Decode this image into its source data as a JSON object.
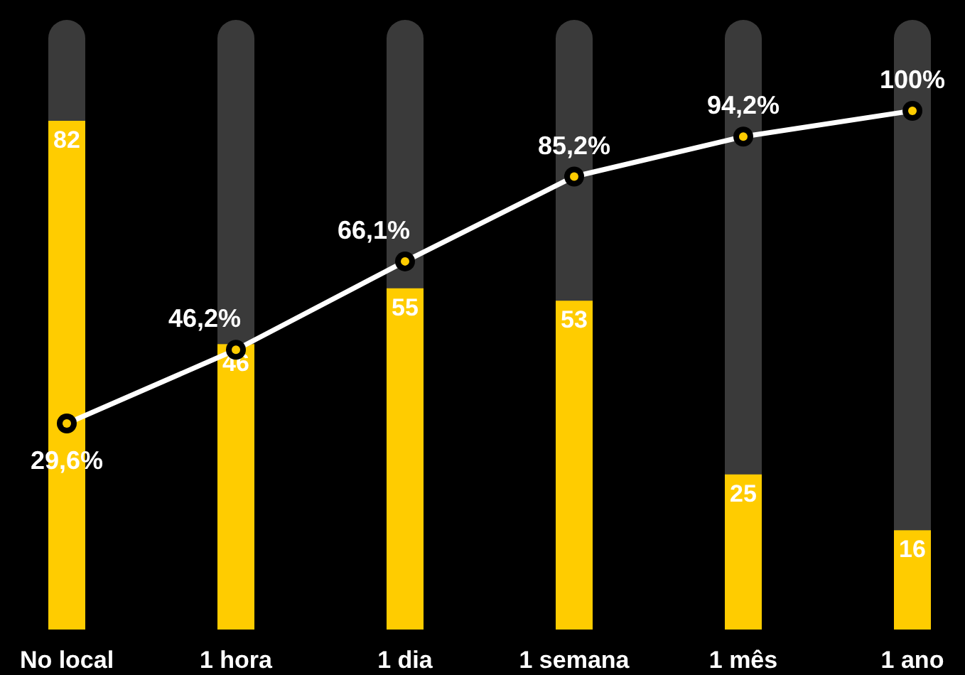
{
  "chart_data": {
    "type": "bar",
    "categories": [
      "No local",
      "1 hora",
      "1 dia",
      "1 semana",
      "1 mês",
      "1 ano"
    ],
    "tick_labels": "x",
    "series": [
      {
        "color": "#ffcc00",
        "values": [
          82,
          46,
          55,
          53,
          25,
          16
        ],
        "value_labels": [
          "82",
          "46",
          "55",
          "53",
          "25",
          "16"
        ]
      },
      {
        "type": "line",
        "axis": "y2",
        "color": "#ffffff",
        "marker": "circle",
        "values": [
          29.6,
          46.2,
          66.1,
          85.2,
          94.2,
          100
        ],
        "value_labels": [
          "29,6%",
          "46,2%",
          "66,1%",
          "85,2%",
          "94,2%",
          "100%"
        ]
      }
    ]
  }
}
